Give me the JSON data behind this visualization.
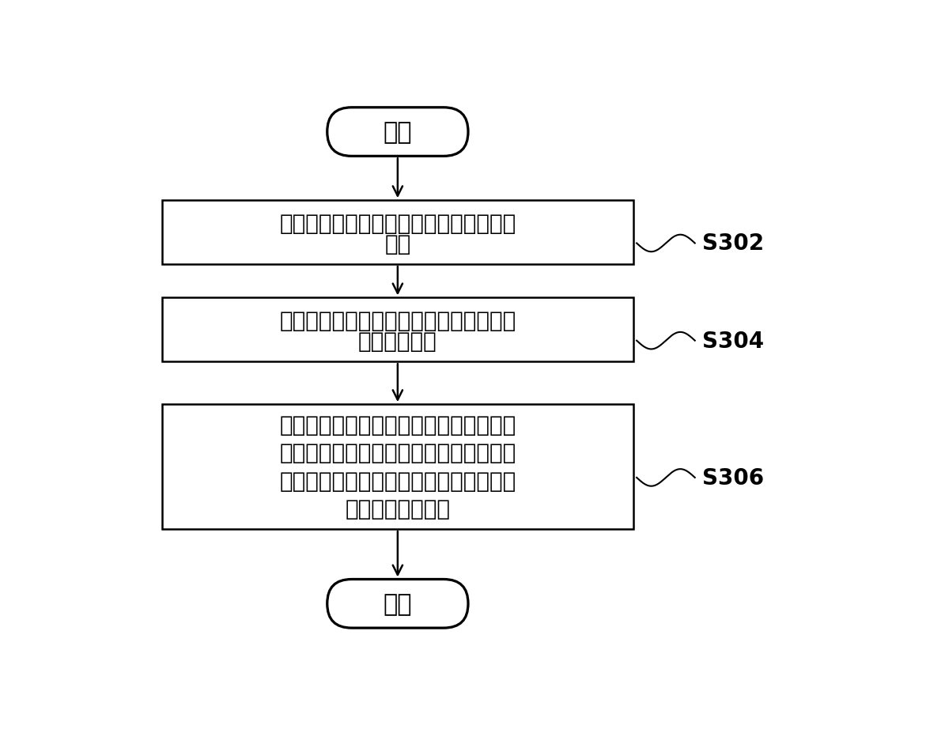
{
  "bg_color": "#ffffff",
  "start_label": "开始",
  "end_label": "结束",
  "box1_text_line1": "接收制冷开机指令后，获取新风机的回风",
  "box1_text_line2": "温度",
  "box2_text_line1": "按照与回风温度对应的预设的计算要求计",
  "box2_text_line2": "算当前过热度",
  "box3_text_line1": "按照预设的与温度区间对应的修正系数对",
  "box3_text_line2": "当前过热度与目标过热度的差值进行修正",
  "box3_text_line3": "后，得出阀体的调整开度，并根据调整开",
  "box3_text_line4": "度对阀体进行控制",
  "label1": "S302",
  "label2": "S304",
  "label3": "S306",
  "text_color": "#000000",
  "font_size_box": 20,
  "font_size_terminal": 22,
  "font_size_label": 20,
  "lw": 1.8
}
